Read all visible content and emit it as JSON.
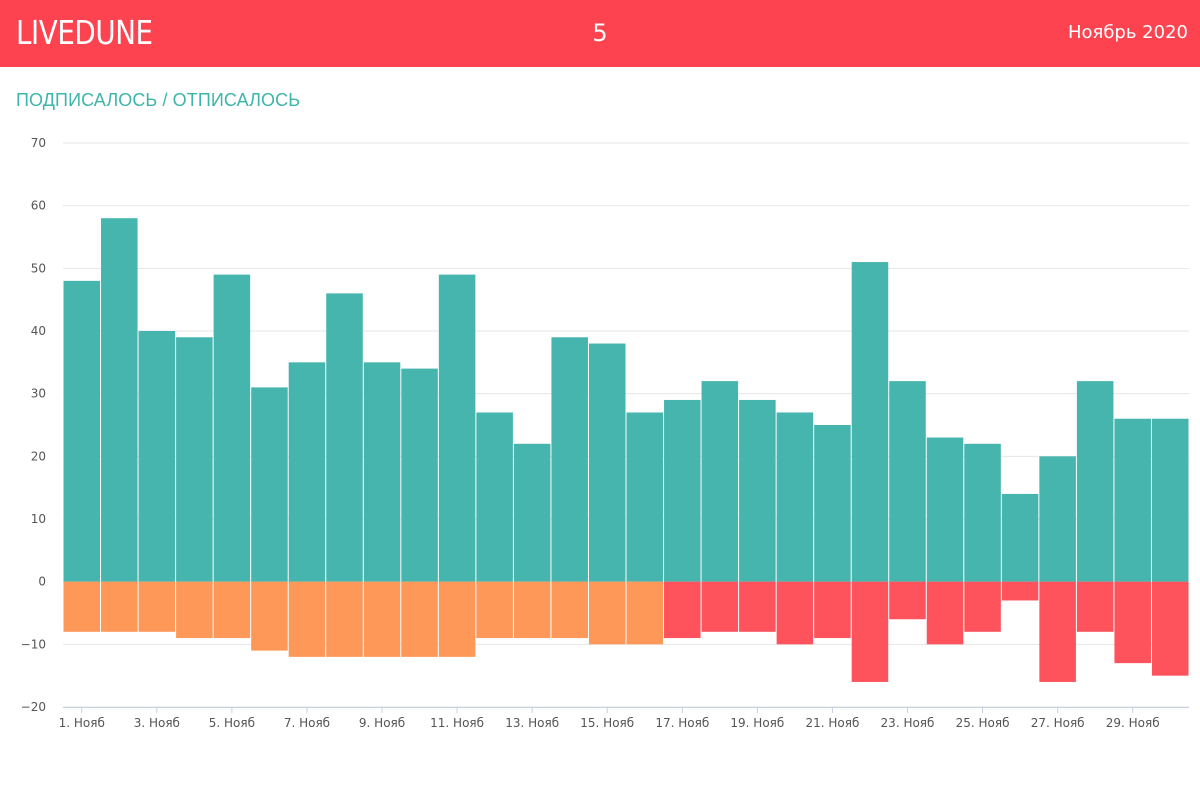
{
  "header": {
    "logo": "LIVEDUNE",
    "page_number": "5",
    "period": "Ноябрь 2020"
  },
  "colors": {
    "header_bg": "#fe4350",
    "positive": "#45b5ae",
    "negative_early": "#fe9858",
    "negative_late": "#fe525c",
    "grid": "#e6e6e6"
  },
  "chart_data": {
    "type": "bar",
    "title": "ПОДПИСАЛОСЬ / ОТПИСАЛОСЬ",
    "xlabel": "",
    "ylabel": "",
    "ylim": [
      -20,
      70
    ],
    "yticks": [
      70,
      60,
      50,
      40,
      30,
      20,
      10,
      0,
      -10,
      -20
    ],
    "grid": true,
    "categories": [
      "1. Нояб",
      "2. Нояб",
      "3. Нояб",
      "4. Нояб",
      "5. Нояб",
      "6. Нояб",
      "7. Нояб",
      "8. Нояб",
      "9. Нояб",
      "10. Нояб",
      "11. Нояб",
      "12. Нояб",
      "13. Нояб",
      "14. Нояб",
      "15. Нояб",
      "16. Нояб",
      "17. Нояб",
      "18. Нояб",
      "19. Нояб",
      "20. Нояб",
      "21. Нояб",
      "22. Нояб",
      "23. Нояб",
      "24. Нояб",
      "25. Нояб",
      "26. Нояб",
      "27. Нояб",
      "28. Нояб",
      "29. Нояб",
      "30. Нояб"
    ],
    "xtick_labels": [
      "1. Нояб",
      "3. Нояб",
      "5. Нояб",
      "7. Нояб",
      "9. Нояб",
      "11. Нояб",
      "13. Нояб",
      "15. Нояб",
      "17. Нояб",
      "19. Нояб",
      "21. Нояб",
      "23. Нояб",
      "25. Нояб",
      "27. Нояб",
      "29. Нояб"
    ],
    "series": [
      {
        "name": "Подписалось",
        "values": [
          48,
          58,
          40,
          39,
          49,
          31,
          35,
          46,
          35,
          34,
          49,
          27,
          22,
          39,
          38,
          27,
          29,
          32,
          29,
          27,
          25,
          51,
          32,
          23,
          22,
          14,
          20,
          32,
          26,
          26
        ]
      },
      {
        "name": "Отписалось",
        "values": [
          -8,
          -8,
          -8,
          -9,
          -9,
          -11,
          -12,
          -12,
          -12,
          -12,
          -12,
          -9,
          -9,
          -9,
          -10,
          -10,
          -9,
          -8,
          -8,
          -10,
          -9,
          -16,
          -6,
          -10,
          -8,
          -3,
          -16,
          -8,
          -13,
          -15
        ]
      }
    ],
    "negative_color_switch_day": 17
  }
}
